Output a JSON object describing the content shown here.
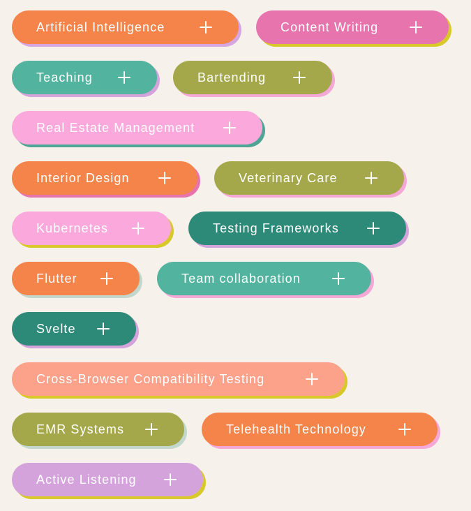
{
  "tags": [
    {
      "label": "Artificial Intelligence",
      "color": "#f4844a",
      "shadow": "#d7a6e0",
      "icon": "plus-icon"
    },
    {
      "label": "Content Writing",
      "color": "#e874ad",
      "shadow": "#d8c82a",
      "icon": "plus-icon"
    },
    {
      "label": "Teaching",
      "color": "#52b39f",
      "shadow": "#d4a3dc",
      "icon": "plus-icon"
    },
    {
      "label": "Bartending",
      "color": "#a4a84a",
      "shadow": "#f5a8d6",
      "icon": "plus-icon"
    },
    {
      "label": "Real Estate Management",
      "color": "#fba8dc",
      "shadow": "#4fa595",
      "icon": "plus-icon"
    },
    {
      "label": "Interior Design",
      "color": "#f4844a",
      "shadow": "#e874ad",
      "icon": "plus-icon"
    },
    {
      "label": "Veterinary Care",
      "color": "#a4a84a",
      "shadow": "#f5a8d6",
      "icon": "plus-icon"
    },
    {
      "label": "Kubernetes",
      "color": "#fba8dc",
      "shadow": "#d8c82a",
      "icon": "plus-icon"
    },
    {
      "label": "Testing Frameworks",
      "color": "#2e8a78",
      "shadow": "#d4a3dc",
      "icon": "plus-icon"
    },
    {
      "label": "Flutter",
      "color": "#f4844a",
      "shadow": "#c3d8cc",
      "icon": "plus-icon"
    },
    {
      "label": "Team collaboration",
      "color": "#52b39f",
      "shadow": "#f5a8d6",
      "icon": "plus-icon"
    },
    {
      "label": "Svelte",
      "color": "#2e8a78",
      "shadow": "#d4a3dc",
      "icon": "plus-icon"
    },
    {
      "label": "Cross-Browser Compatibility Testing",
      "color": "#fca28b",
      "shadow": "#d8c82a",
      "icon": "plus-icon"
    },
    {
      "label": "EMR Systems",
      "color": "#a4a84a",
      "shadow": "#c3d8cc",
      "icon": "plus-icon"
    },
    {
      "label": "Telehealth Technology",
      "color": "#f4844a",
      "shadow": "#f5a8d6",
      "icon": "plus-icon"
    },
    {
      "label": "Active Listening",
      "color": "#d4a3dc",
      "shadow": "#d8c82a",
      "icon": "plus-icon"
    }
  ]
}
